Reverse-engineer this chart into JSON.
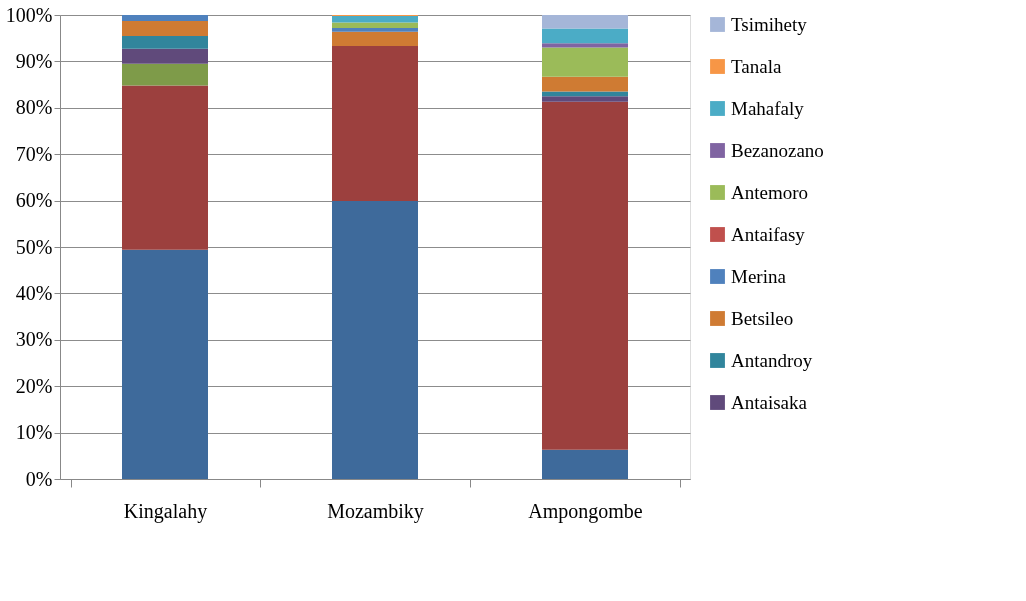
{
  "chart_data": {
    "type": "bar",
    "stacked": true,
    "categories": [
      "Kingalahy",
      "Mozambiky",
      "Ampongombe"
    ],
    "series": [
      {
        "color": "#3e6a9b",
        "values": [
          49.4,
          59.9,
          6.3
        ]
      },
      {
        "color": "#9c403e",
        "values": [
          35.4,
          33.4,
          75.0
        ]
      },
      {
        "color": "#7e9b49",
        "values": [
          4.7,
          0,
          0
        ]
      },
      {
        "name": "Antaisaka",
        "color": "#604a7b",
        "values": [
          3.2,
          0,
          1.2
        ]
      },
      {
        "name": "Antandroy",
        "color": "#31859c",
        "values": [
          2.8,
          0,
          1.0
        ]
      },
      {
        "name": "Betsileo",
        "color": "#cf7b33",
        "values": [
          3.2,
          3.1,
          3.2
        ]
      },
      {
        "name": "Merina",
        "color": "#4f81bd",
        "values": [
          1.3,
          0.8,
          0
        ]
      },
      {
        "name": "Antaifasy",
        "color": "#c0504d",
        "values": [
          0,
          0,
          0
        ]
      },
      {
        "name": "Antemoro",
        "color": "#9bbb59",
        "values": [
          0,
          1.2,
          6.3
        ]
      },
      {
        "name": "Bezanozano",
        "color": "#8064a2",
        "values": [
          0,
          0,
          0.9
        ]
      },
      {
        "name": "Mahafaly",
        "color": "#4bacc6",
        "values": [
          0,
          1.4,
          3.2
        ]
      },
      {
        "name": "Tanala",
        "color": "#f79646",
        "values": [
          0,
          0.2,
          0
        ]
      },
      {
        "name": "Tsimihety",
        "color": "#a5b6d8",
        "values": [
          0,
          0,
          2.9
        ]
      }
    ],
    "ylim": [
      0,
      100
    ],
    "yticks": [
      {
        "value": 0,
        "label": "0%"
      },
      {
        "value": 10,
        "label": "10%"
      },
      {
        "value": 20,
        "label": "20%"
      },
      {
        "value": 30,
        "label": "30%"
      },
      {
        "value": 40,
        "label": "40%"
      },
      {
        "value": 50,
        "label": "50%"
      },
      {
        "value": 60,
        "label": "60%"
      },
      {
        "value": 70,
        "label": "70%"
      },
      {
        "value": 80,
        "label": "80%"
      },
      {
        "value": 90,
        "label": "90%"
      },
      {
        "value": 100,
        "label": "100%"
      }
    ],
    "grid": "y",
    "legend": "right"
  }
}
